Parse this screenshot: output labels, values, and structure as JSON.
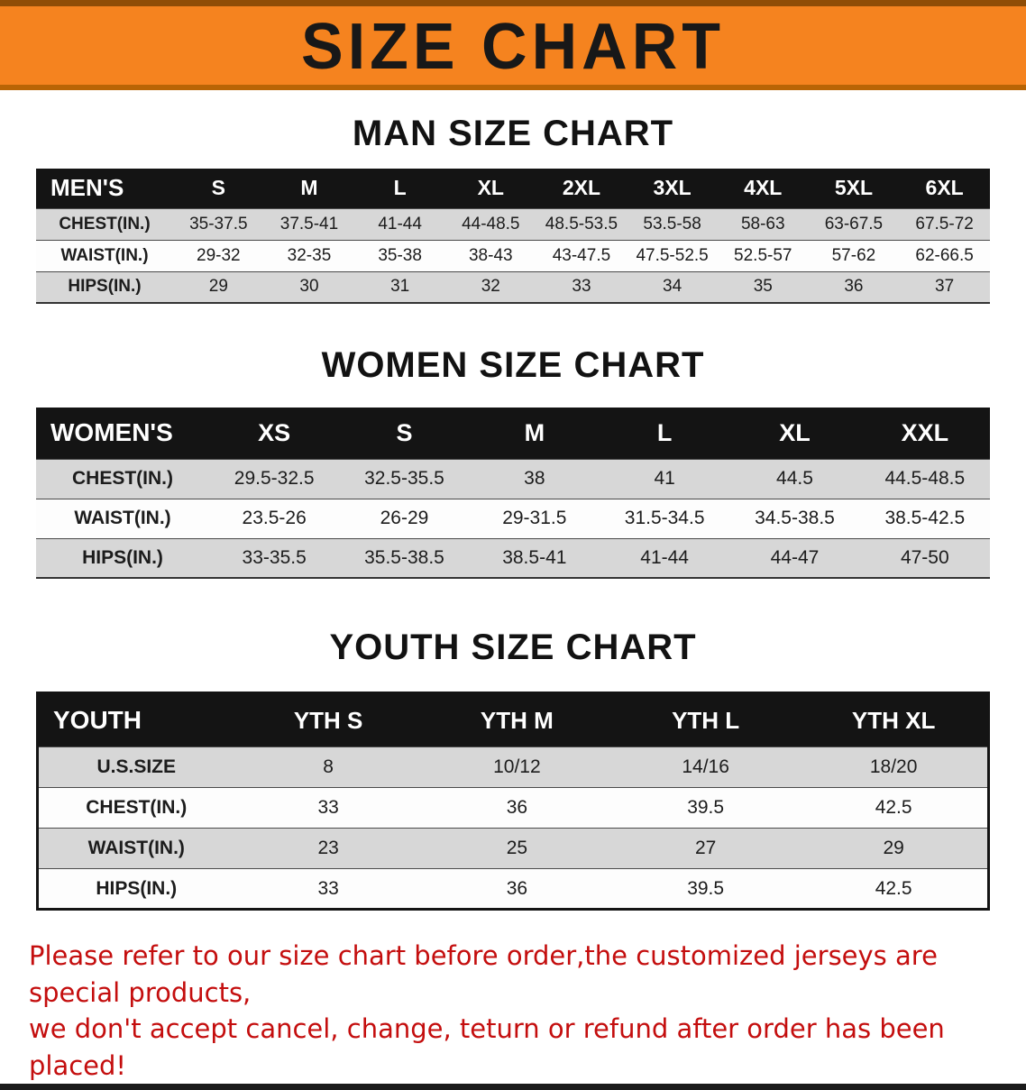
{
  "banner": {
    "title": "SIZE CHART",
    "bg_color": "#f5831f"
  },
  "sections": [
    {
      "heading": "MAN SIZE CHART",
      "table": {
        "header": [
          "MEN'S",
          "S",
          "M",
          "L",
          "XL",
          "2XL",
          "3XL",
          "4XL",
          "5XL",
          "6XL"
        ],
        "rows": [
          [
            "CHEST(IN.)",
            "35-37.5",
            "37.5-41",
            "41-44",
            "44-48.5",
            "48.5-53.5",
            "53.5-58",
            "58-63",
            "63-67.5",
            "67.5-72"
          ],
          [
            "WAIST(IN.)",
            "29-32",
            "32-35",
            "35-38",
            "38-43",
            "43-47.5",
            "47.5-52.5",
            "52.5-57",
            "57-62",
            "62-66.5"
          ],
          [
            "HIPS(IN.)",
            "29",
            "30",
            "31",
            "32",
            "33",
            "34",
            "35",
            "36",
            "37"
          ]
        ]
      }
    },
    {
      "heading": "WOMEN SIZE CHART",
      "table": {
        "header": [
          "WOMEN'S",
          "XS",
          "S",
          "M",
          "L",
          "XL",
          "XXL"
        ],
        "rows": [
          [
            "CHEST(IN.)",
            "29.5-32.5",
            "32.5-35.5",
            "38",
            "41",
            "44.5",
            "44.5-48.5"
          ],
          [
            "WAIST(IN.)",
            "23.5-26",
            "26-29",
            "29-31.5",
            "31.5-34.5",
            "34.5-38.5",
            "38.5-42.5"
          ],
          [
            "HIPS(IN.)",
            "33-35.5",
            "35.5-38.5",
            "38.5-41",
            "41-44",
            "44-47",
            "47-50"
          ]
        ]
      }
    },
    {
      "heading": "YOUTH SIZE CHART",
      "table": {
        "header": [
          "YOUTH",
          "YTH S",
          "YTH M",
          "YTH L",
          "YTH XL"
        ],
        "rows": [
          [
            "U.S.SIZE",
            "8",
            "10/12",
            "14/16",
            "18/20"
          ],
          [
            "CHEST(IN.)",
            "33",
            "36",
            "39.5",
            "42.5"
          ],
          [
            "WAIST(IN.)",
            "23",
            "25",
            "27",
            "29"
          ],
          [
            "HIPS(IN.)",
            "33",
            "36",
            "39.5",
            "42.5"
          ]
        ]
      }
    }
  ],
  "footer": {
    "line1": "Please refer to our size chart before order,the customized jerseys are special products,",
    "line2": "we don't accept cancel, change, teturn or refund after order has been placed!",
    "text_color": "#c40e0e"
  }
}
